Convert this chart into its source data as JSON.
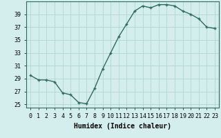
{
  "x": [
    0,
    1,
    2,
    3,
    4,
    5,
    6,
    7,
    8,
    9,
    10,
    11,
    12,
    13,
    14,
    15,
    16,
    17,
    18,
    19,
    20,
    21,
    22,
    23
  ],
  "y": [
    29.5,
    28.8,
    28.8,
    28.5,
    26.8,
    26.5,
    25.3,
    25.1,
    27.5,
    30.5,
    33.0,
    35.5,
    37.5,
    39.5,
    40.3,
    40.0,
    40.5,
    40.5,
    40.3,
    39.5,
    39.0,
    38.3,
    37.0,
    36.8
  ],
  "line_color": "#2e6b5e",
  "marker": "+",
  "marker_size": 3.5,
  "background_color": "#d4eeee",
  "grid_color": "#b0d4d4",
  "xlabel": "Humidex (Indice chaleur)",
  "xlabel_fontsize": 7,
  "ylim": [
    24.5,
    41.0
  ],
  "xlim": [
    -0.5,
    23.5
  ],
  "yticks": [
    25,
    27,
    29,
    31,
    33,
    35,
    37,
    39
  ],
  "xtick_labels": [
    "0",
    "1",
    "2",
    "3",
    "4",
    "5",
    "6",
    "7",
    "8",
    "9",
    "10",
    "11",
    "12",
    "13",
    "14",
    "15",
    "16",
    "17",
    "18",
    "19",
    "20",
    "21",
    "22",
    "23"
  ],
  "tick_fontsize": 6,
  "linewidth": 1.0
}
